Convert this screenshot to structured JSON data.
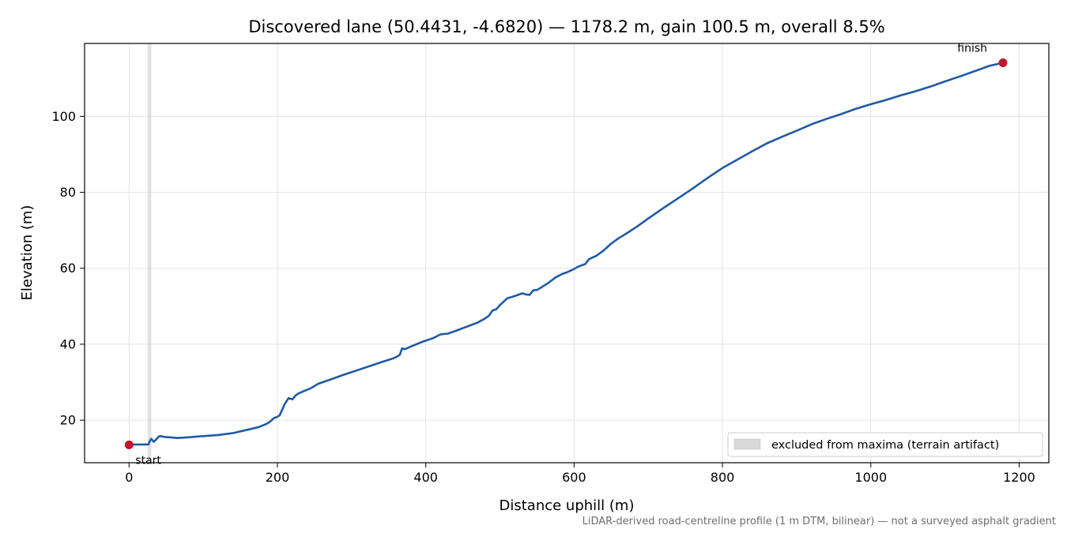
{
  "chart_data": {
    "type": "line",
    "title": "Discovered lane (50.4431, -4.6820) — 1178.2 m, gain 100.5 m, overall 8.5%",
    "xlabel": "Distance uphill (m)",
    "ylabel": "Elevation (m)",
    "xlim": [
      -60,
      1240
    ],
    "ylim": [
      8.8,
      119.2
    ],
    "xticks": [
      0,
      200,
      400,
      600,
      800,
      1000,
      1200
    ],
    "yticks": [
      20,
      40,
      60,
      80,
      100
    ],
    "grid": true,
    "legend_position": "lower-right",
    "legend": [
      {
        "label": "excluded from maxima (terrain artifact)",
        "color": "#d9d9d9"
      }
    ],
    "excluded_region": [
      25,
      30
    ],
    "series": [
      {
        "color": "#1f5aa6",
        "x": [
          0,
          5,
          10,
          20,
          26,
          28,
          30,
          33,
          36,
          40,
          43,
          47,
          55,
          65,
          80,
          100,
          120,
          140,
          160,
          175,
          185,
          190,
          195,
          200,
          203,
          207,
          210,
          215,
          220,
          225,
          228,
          235,
          245,
          255,
          270,
          290,
          310,
          330,
          345,
          355,
          360,
          365,
          368,
          372,
          380,
          395,
          410,
          420,
          430,
          440,
          455,
          470,
          480,
          485,
          490,
          495,
          500,
          510,
          520,
          530,
          535,
          540,
          545,
          550,
          555,
          565,
          575,
          585,
          590,
          600,
          605,
          615,
          620,
          630,
          640,
          650,
          660,
          670,
          685,
          700,
          720,
          740,
          760,
          780,
          800,
          820,
          840,
          860,
          880,
          900,
          920,
          940,
          960,
          980,
          1000,
          1020,
          1040,
          1060,
          1080,
          1100,
          1120,
          1140,
          1160,
          1178.2
        ],
        "y": [
          13.5,
          13.6,
          13.6,
          13.6,
          13.6,
          14.5,
          15.1,
          14.3,
          14.8,
          15.7,
          15.8,
          15.6,
          15.5,
          15.3,
          15.5,
          15.8,
          16.1,
          16.6,
          17.5,
          18.2,
          19.0,
          19.6,
          20.5,
          20.9,
          21.3,
          23.0,
          24.3,
          25.8,
          25.5,
          26.6,
          27.0,
          27.6,
          28.4,
          29.6,
          30.6,
          32.0,
          33.3,
          34.6,
          35.6,
          36.2,
          36.6,
          37.2,
          38.9,
          38.7,
          39.4,
          40.6,
          41.6,
          42.6,
          42.8,
          43.5,
          44.6,
          45.7,
          46.8,
          47.5,
          48.9,
          49.2,
          50.3,
          52.1,
          52.7,
          53.4,
          53.1,
          53.0,
          54.2,
          54.3,
          54.9,
          56.1,
          57.6,
          58.6,
          58.9,
          59.8,
          60.4,
          61.1,
          62.4,
          63.3,
          64.7,
          66.5,
          67.9,
          69.1,
          71.0,
          73.1,
          75.8,
          78.4,
          81.0,
          83.8,
          86.4,
          88.6,
          90.8,
          92.9,
          94.6,
          96.2,
          97.9,
          99.3,
          100.6,
          102.0,
          103.2,
          104.3,
          105.5,
          106.6,
          107.8,
          109.2,
          110.5,
          111.9,
          113.3,
          114.1
        ]
      }
    ],
    "annotations": [
      {
        "text": "start",
        "x": 0,
        "y": 13.5,
        "color": "#c0172b"
      },
      {
        "text": "finish",
        "x": 1178.2,
        "y": 114.1,
        "color": "#c0172b"
      }
    ],
    "footnote": "LiDAR-derived road-centreline profile (1 m DTM, bilinear) — not a surveyed asphalt gradient"
  }
}
